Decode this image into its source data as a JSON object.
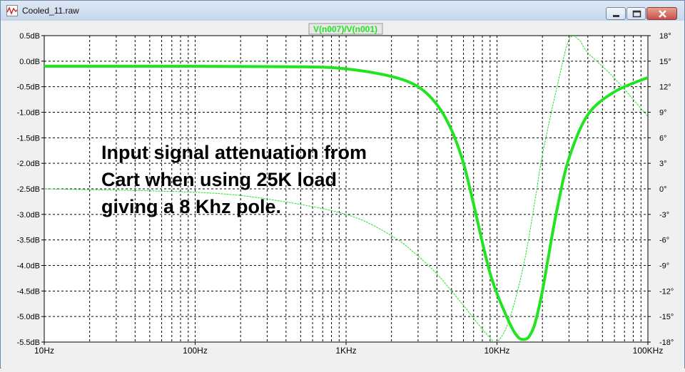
{
  "window": {
    "title": "Cooled_11.raw",
    "app_icon": "waveform-icon",
    "buttons": [
      "minimize-icon",
      "maximize-icon",
      "close-icon"
    ]
  },
  "trace": {
    "label": "V(n007)/V(n001)"
  },
  "annotation": {
    "lines": [
      "Input signal attenuation from",
      "Cart when using 25K load",
      "giving a 8 Khz pole."
    ]
  },
  "chart_data": {
    "type": "line",
    "x_scale": "log",
    "xlim": [
      10,
      100000
    ],
    "ylim_left": [
      -5.5,
      0.5
    ],
    "ylim_right": [
      -18,
      18
    ],
    "x_ticks": [
      "10Hz",
      "100Hz",
      "1KHz",
      "10KHz",
      "100KHz"
    ],
    "y_ticks_left": [
      "0.5dB",
      "0.0dB",
      "-0.5dB",
      "-1.0dB",
      "-1.5dB",
      "-2.0dB",
      "-2.5dB",
      "-3.0dB",
      "-3.5dB",
      "-4.0dB",
      "-4.5dB",
      "-5.0dB",
      "-5.5dB"
    ],
    "y_ticks_right": [
      "18°",
      "15°",
      "12°",
      "9°",
      "6°",
      "3°",
      "0°",
      "-3°",
      "-6°",
      "-9°",
      "-12°",
      "-15°",
      "-18°"
    ],
    "grid": true,
    "colors": {
      "trace": "#22e322",
      "grid": "#000000",
      "background": "#ffffff"
    },
    "series": [
      {
        "axis": "left",
        "style": "thick",
        "x": [
          10,
          100,
          500,
          1000,
          2000,
          3000,
          4000,
          5000,
          6000,
          7000,
          8000,
          9000,
          10000,
          11000,
          12000,
          13000,
          14000,
          15000,
          16000,
          17000,
          18000,
          20000,
          22000,
          25000,
          30000,
          40000,
          60000,
          100000
        ],
        "y": [
          -0.1,
          -0.1,
          -0.11,
          -0.15,
          -0.3,
          -0.5,
          -0.85,
          -1.35,
          -2.0,
          -2.8,
          -3.55,
          -4.15,
          -4.55,
          -4.85,
          -5.1,
          -5.3,
          -5.42,
          -5.45,
          -5.42,
          -5.3,
          -5.1,
          -4.5,
          -3.8,
          -2.9,
          -1.9,
          -1.05,
          -0.6,
          -0.32
        ]
      },
      {
        "axis": "right",
        "style": "thin",
        "x": [
          10,
          100,
          300,
          1000,
          2000,
          3000,
          4000,
          5000,
          6000,
          7000,
          8000,
          9000,
          10000,
          12000,
          15000,
          18000,
          20000,
          25000,
          30000,
          35000,
          40000,
          60000,
          100000
        ],
        "y": [
          0,
          -0.4,
          -1.2,
          -3.0,
          -5.5,
          -7.9,
          -10.0,
          -12.0,
          -13.7,
          -15.2,
          -16.5,
          -17.5,
          -18.0,
          -15.5,
          -9,
          -1,
          4,
          12,
          17.5,
          17.5,
          16,
          13,
          8.5
        ]
      }
    ]
  }
}
